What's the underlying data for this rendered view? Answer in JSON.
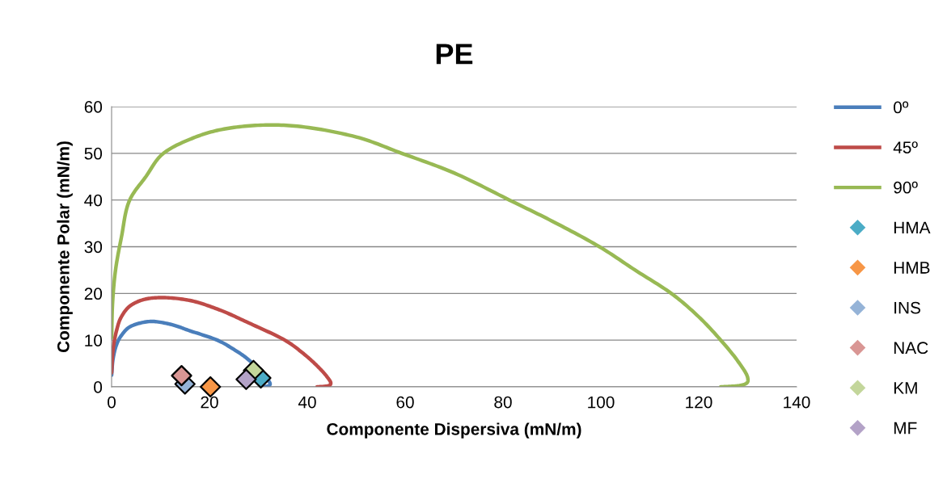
{
  "chart_data": {
    "type": "scatter",
    "title": "PE",
    "xlabel": "Componente Dispersiva (mN/m)",
    "ylabel": "Componente Polar (mN/m)",
    "xlim": [
      0,
      140
    ],
    "xticks": [
      0,
      20,
      40,
      60,
      80,
      100,
      120,
      140
    ],
    "ylim": [
      0,
      60
    ],
    "yticks": [
      0,
      10,
      20,
      30,
      40,
      50,
      60
    ],
    "grid": "y",
    "legend": "right",
    "series": [
      {
        "name": "0º",
        "type": "line",
        "marker": "none",
        "color": "#4a7ebb",
        "x": [
          0,
          0.3,
          1,
          2,
          4,
          7.9,
          12,
          16,
          21.6,
          25,
          28,
          32.4,
          32,
          31
        ],
        "values": [
          2.5,
          6,
          9,
          11,
          13,
          14,
          13.4,
          12,
          10,
          8,
          5.8,
          0.6,
          0.2,
          0
        ]
      },
      {
        "name": "45º",
        "type": "line",
        "marker": "none",
        "color": "#be4b48",
        "x": [
          0,
          0.3,
          1,
          2,
          4,
          7,
          10.6,
          16,
          22,
          28,
          35.4,
          39,
          42,
          44,
          44.8,
          44.5,
          43.5,
          42
        ],
        "values": [
          3,
          8,
          12,
          15,
          17.5,
          18.8,
          19.1,
          18.5,
          16.5,
          13.7,
          10,
          7.3,
          4.5,
          2.2,
          0.8,
          0.3,
          0.1,
          0
        ]
      },
      {
        "name": "90º",
        "type": "line",
        "marker": "none",
        "color": "#98b954",
        "x": [
          0,
          0.2,
          0.8,
          2,
          3.7,
          7,
          10.6,
          16,
          22,
          29.9,
          38,
          50,
          59.3,
          70,
          81.3,
          90,
          99.7,
          107,
          114.4,
          120,
          124.5,
          128,
          130,
          129.8,
          128.5,
          126.5,
          124.5
        ],
        "values": [
          10.5,
          18,
          25,
          32,
          40,
          45,
          50,
          53,
          55,
          56,
          55.8,
          53.5,
          50,
          45.8,
          40,
          35.5,
          30,
          25,
          20,
          15,
          10,
          5.5,
          2,
          0.8,
          0.3,
          0.1,
          0
        ]
      },
      {
        "name": "HMA",
        "marker": "diamond",
        "color": "#4bacc6",
        "x": [
          30.5
        ],
        "values": [
          1.9
        ]
      },
      {
        "name": "HMB",
        "marker": "diamond",
        "color": "#f79646",
        "x": [
          20.2
        ],
        "values": [
          0
        ]
      },
      {
        "name": "INS",
        "marker": "diamond",
        "color": "#95b3d7",
        "x": [
          15
        ],
        "values": [
          0.6
        ]
      },
      {
        "name": "NAC",
        "marker": "diamond",
        "color": "#d99694",
        "x": [
          14.3
        ],
        "values": [
          2.4
        ]
      },
      {
        "name": "KM",
        "marker": "diamond",
        "color": "#c3d69b",
        "x": [
          29
        ],
        "values": [
          3.5
        ]
      },
      {
        "name": "MF",
        "marker": "diamond",
        "color": "#b3a2c7",
        "x": [
          27.5
        ],
        "values": [
          1.6
        ]
      }
    ]
  }
}
